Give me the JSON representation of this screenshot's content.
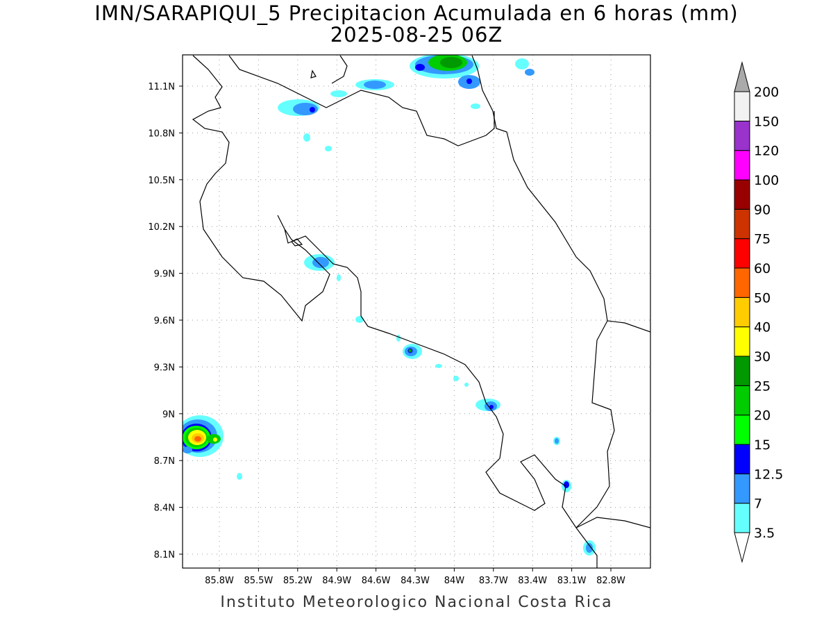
{
  "title": "IMN/SARAPIQUI_5 Precipitacion Acumulada en 6 horas (mm)",
  "subtitle": "2025-08-25 06Z",
  "footer": "Instituto Meteorologico Nacional Costa Rica",
  "map": {
    "lon_labels": [
      "85.8W",
      "85.5W",
      "85.2W",
      "84.9W",
      "84.6W",
      "84.3W",
      "84W",
      "83.7W",
      "83.4W",
      "83.1W",
      "82.8W"
    ],
    "lat_labels": [
      "11.1N",
      "10.8N",
      "10.5N",
      "10.2N",
      "9.9N",
      "9.6N",
      "9.3N",
      "9N",
      "8.7N",
      "8.4N",
      "8.1N"
    ],
    "lon_range": [
      -86.08,
      -82.5
    ],
    "lat_range": [
      8.01,
      11.3
    ]
  },
  "colorbar": {
    "levels": [
      "3.5",
      "7",
      "12.5",
      "15",
      "20",
      "25",
      "30",
      "40",
      "50",
      "60",
      "75",
      "90",
      "100",
      "120",
      "150",
      "200"
    ],
    "colors": [
      "#ffffff",
      "#66ffff",
      "#3399ff",
      "#0000ff",
      "#00ff00",
      "#00cc00",
      "#009900",
      "#ffff00",
      "#ffcc00",
      "#ff6600",
      "#ff0000",
      "#cc3300",
      "#990000",
      "#ff00ff",
      "#9933cc",
      "#f2f2f2",
      "#aaaaaa"
    ]
  }
}
